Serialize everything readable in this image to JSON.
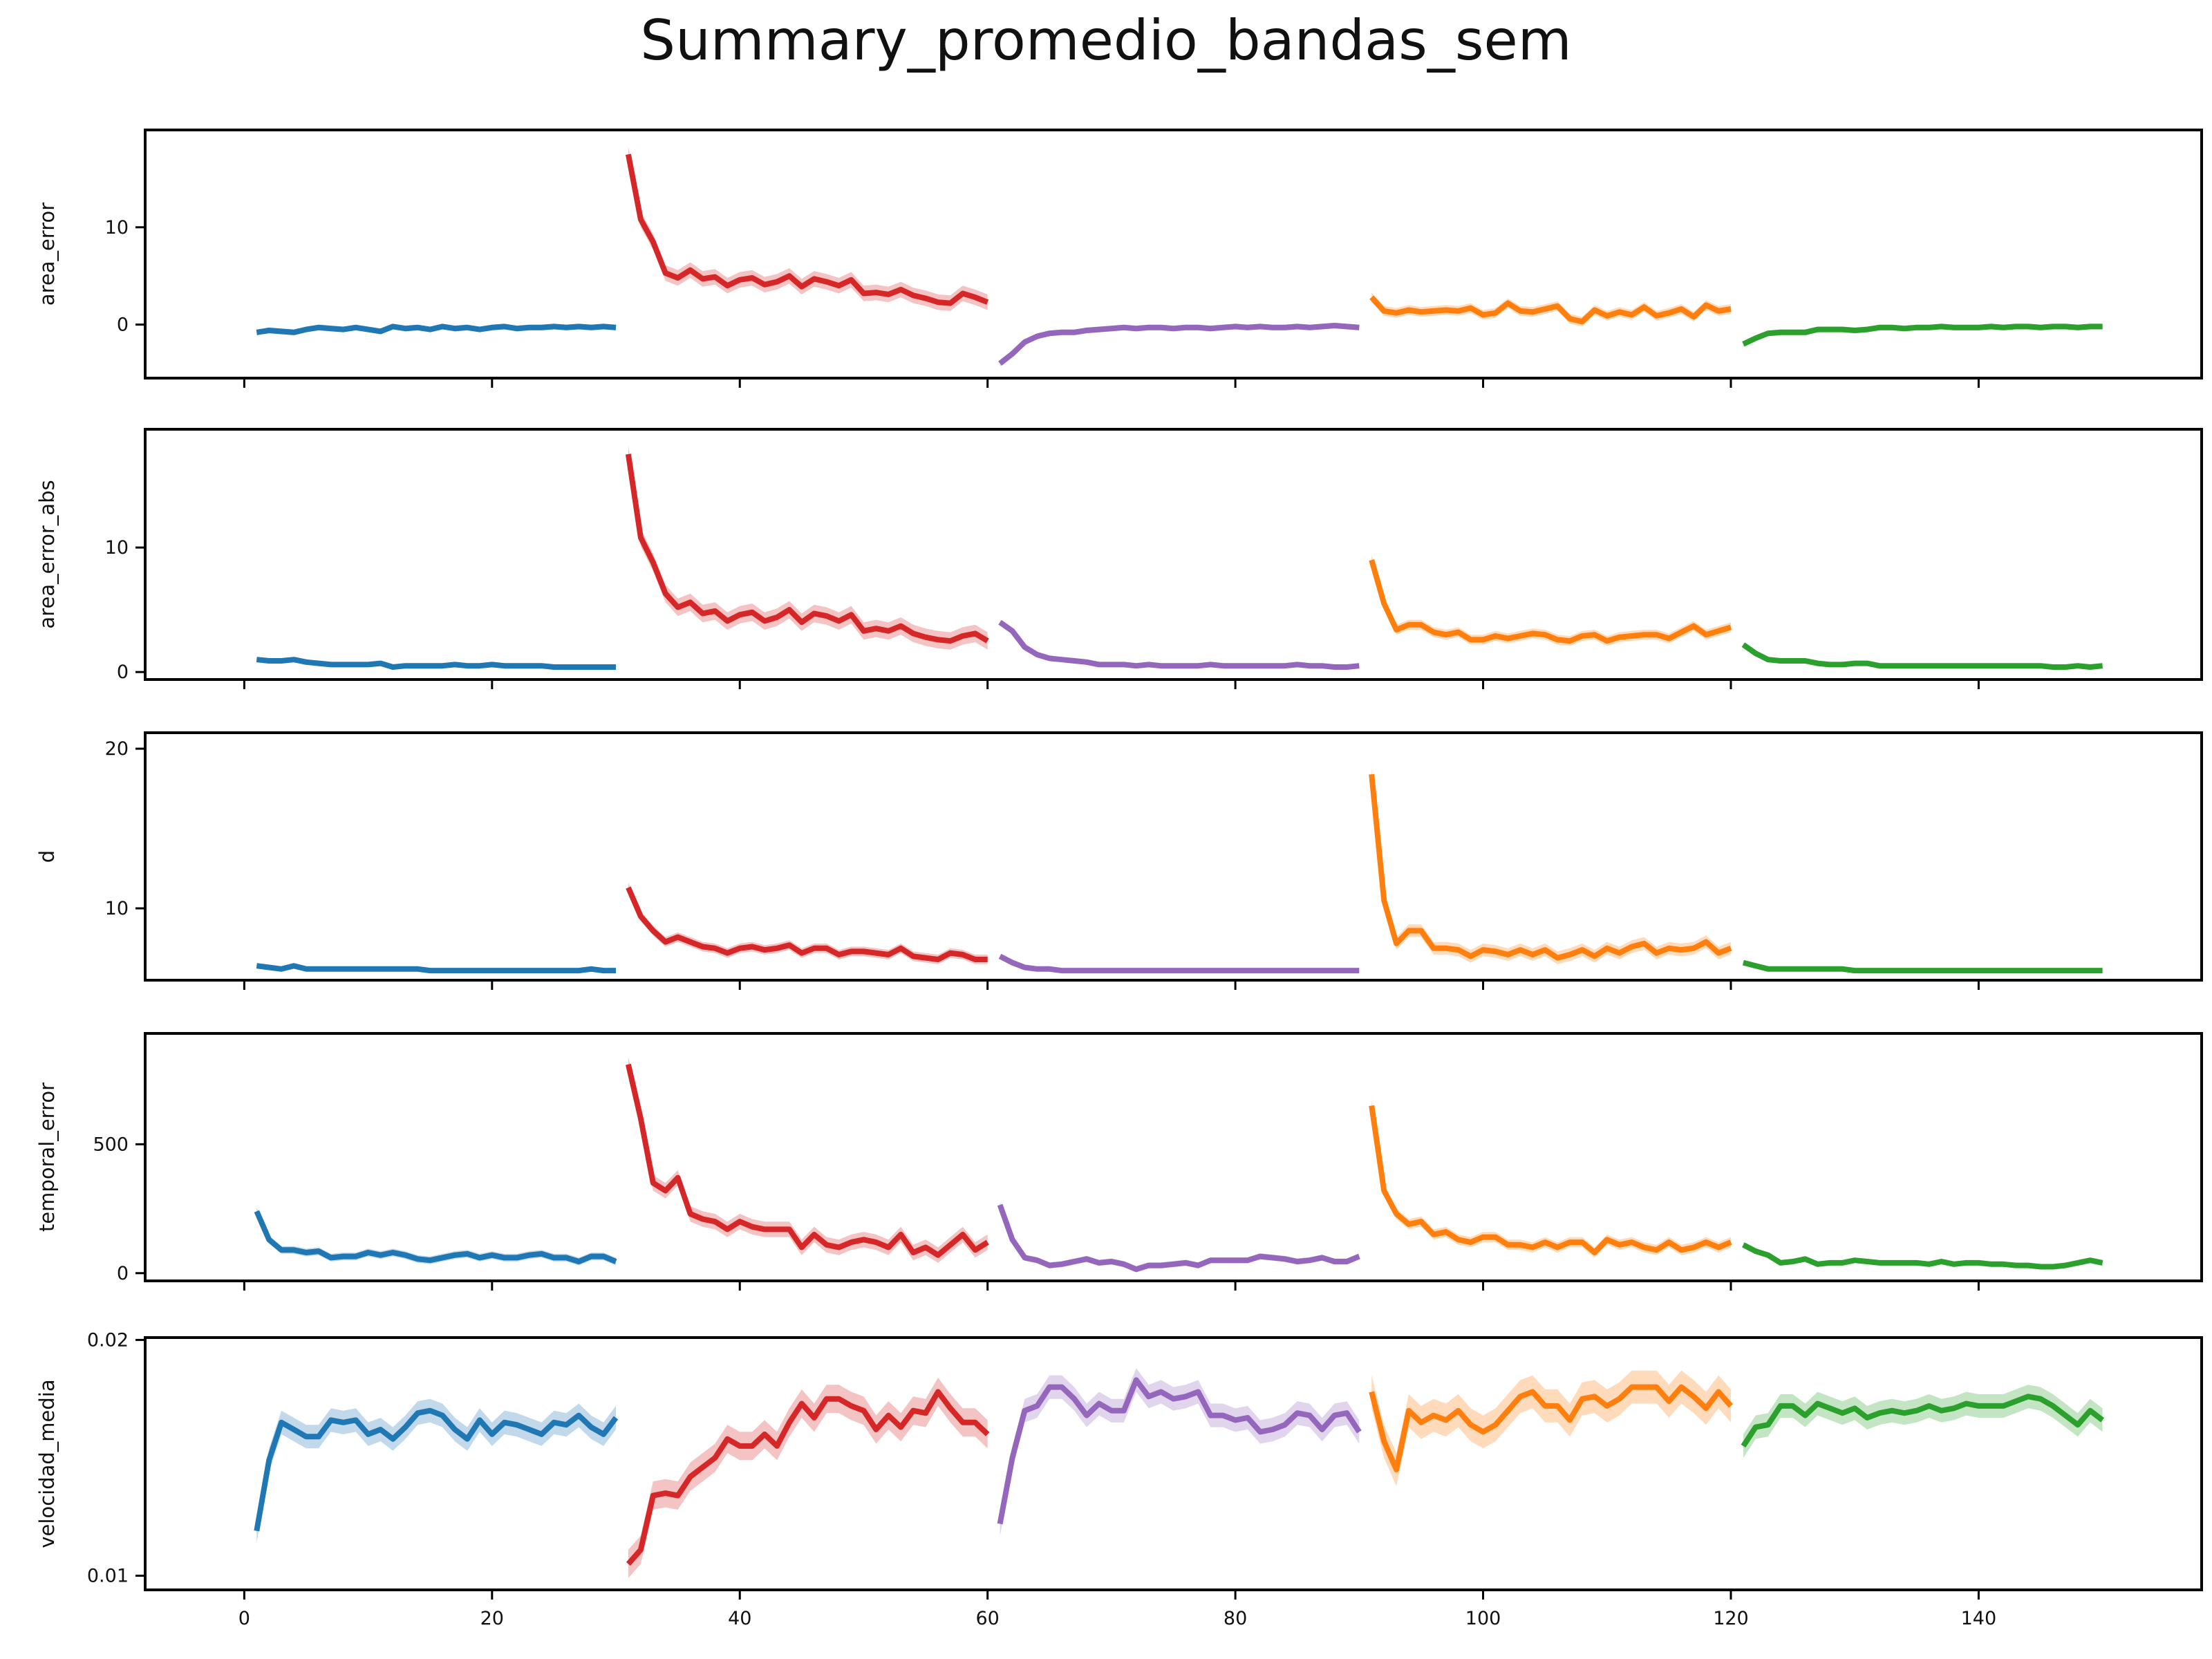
{
  "chart_data": {
    "type": "line",
    "title": "Summary_promedio_bandas_sem",
    "x": {
      "xlim": [
        -8,
        158
      ],
      "ticks": [
        0,
        20,
        40,
        60,
        80,
        100,
        120,
        140
      ],
      "segments": [
        [
          1,
          30
        ],
        [
          31,
          60
        ],
        [
          61,
          90
        ],
        [
          91,
          120
        ],
        [
          121,
          150
        ]
      ]
    },
    "colors": [
      "#1f77b4",
      "#d62728",
      "#9467bd",
      "#ff7f0e",
      "#2ca02c"
    ],
    "panels": [
      {
        "ylabel": "area_error",
        "ylim": [
          -5.5,
          20
        ],
        "yticks": [
          0,
          10
        ],
        "segments": [
          {
            "values": [
              -0.8,
              -0.6,
              -0.7,
              -0.8,
              -0.5,
              -0.3,
              -0.4,
              -0.5,
              -0.3,
              -0.5,
              -0.7,
              -0.2,
              -0.4,
              -0.3,
              -0.5,
              -0.2,
              -0.4,
              -0.3,
              -0.5,
              -0.3,
              -0.2,
              -0.4,
              -0.3,
              -0.3,
              -0.2,
              -0.3,
              -0.2,
              -0.3,
              -0.2,
              -0.3
            ],
            "sem": 0.3
          },
          {
            "values": [
              17.5,
              10.8,
              8.5,
              5.3,
              4.8,
              5.6,
              4.7,
              4.9,
              4.0,
              4.6,
              4.8,
              4.1,
              4.4,
              5.0,
              3.9,
              4.7,
              4.4,
              4.0,
              4.6,
              3.2,
              3.3,
              3.1,
              3.6,
              3.0,
              2.7,
              2.3,
              2.2,
              3.2,
              2.8,
              2.3
            ],
            "sem": 0.8
          },
          {
            "values": [
              -4.0,
              -3.0,
              -1.8,
              -1.2,
              -0.9,
              -0.8,
              -0.8,
              -0.6,
              -0.5,
              -0.4,
              -0.3,
              -0.4,
              -0.3,
              -0.3,
              -0.4,
              -0.3,
              -0.3,
              -0.4,
              -0.3,
              -0.2,
              -0.3,
              -0.2,
              -0.3,
              -0.3,
              -0.2,
              -0.3,
              -0.2,
              -0.1,
              -0.2,
              -0.3
            ],
            "sem": 0.3
          },
          {
            "values": [
              2.8,
              1.4,
              1.2,
              1.5,
              1.3,
              1.4,
              1.5,
              1.4,
              1.7,
              1.0,
              1.2,
              2.2,
              1.4,
              1.3,
              1.6,
              1.9,
              0.6,
              0.3,
              1.5,
              0.9,
              1.3,
              1.0,
              1.8,
              0.9,
              1.2,
              1.6,
              0.8,
              2.0,
              1.4,
              1.6
            ],
            "sem": 0.5
          },
          {
            "values": [
              -2.0,
              -1.4,
              -0.9,
              -0.8,
              -0.8,
              -0.8,
              -0.5,
              -0.5,
              -0.5,
              -0.6,
              -0.5,
              -0.3,
              -0.3,
              -0.4,
              -0.3,
              -0.3,
              -0.2,
              -0.3,
              -0.3,
              -0.3,
              -0.2,
              -0.3,
              -0.2,
              -0.2,
              -0.3,
              -0.2,
              -0.2,
              -0.3,
              -0.2,
              -0.2
            ],
            "sem": 0.3
          }
        ]
      },
      {
        "ylabel": "area_error_abs",
        "ylim": [
          -0.6,
          19.5
        ],
        "yticks": [
          0,
          10
        ],
        "segments": [
          {
            "values": [
              1.0,
              0.9,
              0.9,
              1.0,
              0.8,
              0.7,
              0.6,
              0.6,
              0.6,
              0.6,
              0.7,
              0.4,
              0.5,
              0.5,
              0.5,
              0.5,
              0.6,
              0.5,
              0.5,
              0.6,
              0.5,
              0.5,
              0.5,
              0.5,
              0.4,
              0.4,
              0.4,
              0.4,
              0.4,
              0.4
            ],
            "sem": 0.15
          },
          {
            "values": [
              17.5,
              10.8,
              8.8,
              6.3,
              5.2,
              5.6,
              4.7,
              4.9,
              4.1,
              4.6,
              4.8,
              4.1,
              4.4,
              5.0,
              4.0,
              4.7,
              4.5,
              4.1,
              4.6,
              3.3,
              3.5,
              3.3,
              3.7,
              3.1,
              2.8,
              2.6,
              2.5,
              2.9,
              3.1,
              2.5
            ],
            "sem": 0.7
          },
          {
            "values": [
              4.0,
              3.3,
              2.0,
              1.4,
              1.1,
              1.0,
              0.9,
              0.8,
              0.6,
              0.6,
              0.6,
              0.5,
              0.6,
              0.5,
              0.5,
              0.5,
              0.5,
              0.6,
              0.5,
              0.5,
              0.5,
              0.5,
              0.5,
              0.5,
              0.6,
              0.5,
              0.5,
              0.4,
              0.4,
              0.5
            ],
            "sem": 0.2
          },
          {
            "values": [
              9.0,
              5.5,
              3.4,
              3.8,
              3.8,
              3.2,
              3.0,
              3.2,
              2.6,
              2.6,
              2.9,
              2.7,
              2.9,
              3.1,
              3.0,
              2.6,
              2.5,
              2.9,
              3.0,
              2.5,
              2.8,
              2.9,
              3.0,
              3.0,
              2.7,
              3.2,
              3.7,
              3.0,
              3.3,
              3.6
            ],
            "sem": 0.4
          },
          {
            "values": [
              2.2,
              1.5,
              1.0,
              0.9,
              0.9,
              0.9,
              0.7,
              0.6,
              0.6,
              0.7,
              0.7,
              0.5,
              0.5,
              0.5,
              0.5,
              0.5,
              0.5,
              0.5,
              0.5,
              0.5,
              0.5,
              0.5,
              0.5,
              0.5,
              0.5,
              0.4,
              0.4,
              0.5,
              0.4,
              0.5
            ],
            "sem": 0.15
          }
        ]
      },
      {
        "ylabel": "d",
        "ylim": [
          5.5,
          21
        ],
        "yticks": [
          10,
          20
        ],
        "segments": [
          {
            "values": [
              6.4,
              6.3,
              6.2,
              6.4,
              6.2,
              6.2,
              6.2,
              6.2,
              6.2,
              6.2,
              6.2,
              6.2,
              6.2,
              6.2,
              6.1,
              6.1,
              6.1,
              6.1,
              6.1,
              6.1,
              6.1,
              6.1,
              6.1,
              6.1,
              6.1,
              6.1,
              6.1,
              6.2,
              6.1,
              6.1
            ],
            "sem": 0.1
          },
          {
            "values": [
              11.3,
              9.5,
              8.6,
              7.9,
              8.2,
              7.9,
              7.6,
              7.5,
              7.2,
              7.5,
              7.6,
              7.4,
              7.5,
              7.7,
              7.2,
              7.5,
              7.5,
              7.1,
              7.3,
              7.3,
              7.2,
              7.1,
              7.5,
              7.0,
              6.9,
              6.8,
              7.2,
              7.1,
              6.8,
              6.8
            ],
            "sem": 0.3
          },
          {
            "values": [
              7.0,
              6.6,
              6.3,
              6.2,
              6.2,
              6.1,
              6.1,
              6.1,
              6.1,
              6.1,
              6.1,
              6.1,
              6.1,
              6.1,
              6.1,
              6.1,
              6.1,
              6.1,
              6.1,
              6.1,
              6.1,
              6.1,
              6.1,
              6.1,
              6.1,
              6.1,
              6.1,
              6.1,
              6.1,
              6.1
            ],
            "sem": 0.1
          },
          {
            "values": [
              18.4,
              10.5,
              7.8,
              8.6,
              8.6,
              7.5,
              7.5,
              7.4,
              7.0,
              7.4,
              7.3,
              7.1,
              7.4,
              7.1,
              7.4,
              6.9,
              7.1,
              7.4,
              7.0,
              7.5,
              7.2,
              7.6,
              7.8,
              7.2,
              7.5,
              7.4,
              7.5,
              7.9,
              7.2,
              7.5
            ],
            "sem": 0.4
          },
          {
            "values": [
              6.6,
              6.4,
              6.2,
              6.2,
              6.2,
              6.2,
              6.2,
              6.2,
              6.2,
              6.1,
              6.1,
              6.1,
              6.1,
              6.1,
              6.1,
              6.1,
              6.1,
              6.1,
              6.1,
              6.1,
              6.1,
              6.1,
              6.1,
              6.1,
              6.1,
              6.1,
              6.1,
              6.1,
              6.1,
              6.1
            ],
            "sem": 0.1
          }
        ]
      },
      {
        "ylabel": "temporal_error",
        "ylim": [
          -30,
          930
        ],
        "yticks": [
          0,
          500
        ],
        "segments": [
          {
            "values": [
              240,
              130,
              90,
              90,
              80,
              85,
              60,
              65,
              65,
              80,
              70,
              80,
              70,
              55,
              50,
              60,
              70,
              75,
              60,
              70,
              60,
              60,
              70,
              75,
              60,
              60,
              45,
              65,
              65,
              45
            ],
            "sem": 15
          },
          {
            "values": [
              810,
              600,
              350,
              320,
              370,
              230,
              210,
              200,
              170,
              200,
              180,
              170,
              170,
              170,
              100,
              150,
              110,
              100,
              120,
              130,
              120,
              100,
              150,
              80,
              100,
              70,
              110,
              150,
              90,
              120
            ],
            "sem": 30
          },
          {
            "values": [
              265,
              130,
              60,
              50,
              30,
              35,
              45,
              55,
              40,
              45,
              35,
              15,
              30,
              30,
              35,
              40,
              30,
              50,
              50,
              50,
              50,
              65,
              60,
              55,
              45,
              50,
              60,
              45,
              45,
              65
            ],
            "sem": 12
          },
          {
            "values": [
              650,
              320,
              230,
              190,
              200,
              150,
              160,
              130,
              120,
              140,
              140,
              110,
              110,
              100,
              120,
              100,
              120,
              120,
              80,
              130,
              110,
              120,
              100,
              90,
              120,
              90,
              100,
              120,
              100,
              120
            ],
            "sem": 20
          },
          {
            "values": [
              110,
              85,
              70,
              40,
              45,
              55,
              35,
              40,
              40,
              50,
              45,
              40,
              40,
              40,
              40,
              35,
              45,
              35,
              40,
              40,
              35,
              35,
              30,
              30,
              25,
              25,
              30,
              40,
              50,
              40
            ],
            "sem": 10
          }
        ]
      },
      {
        "ylabel": "velocidad_media",
        "ylim": [
          0.0094,
          0.0201
        ],
        "yticks": [
          0.01,
          0.02
        ],
        "ytick_labels": [
          "0.01",
          "0.02"
        ],
        "segments": [
          {
            "values": [
              0.0119,
              0.0149,
              0.0165,
              0.0162,
              0.0159,
              0.0159,
              0.0166,
              0.0165,
              0.0166,
              0.016,
              0.0162,
              0.0158,
              0.0163,
              0.0169,
              0.017,
              0.0168,
              0.0162,
              0.0158,
              0.0166,
              0.016,
              0.0165,
              0.0164,
              0.0162,
              0.016,
              0.0165,
              0.0164,
              0.0168,
              0.0163,
              0.016,
              0.0167
            ],
            "sem": 0.0005
          },
          {
            "values": [
              0.0105,
              0.0111,
              0.0134,
              0.0135,
              0.0134,
              0.0142,
              0.0146,
              0.015,
              0.0158,
              0.0155,
              0.0155,
              0.016,
              0.0155,
              0.0165,
              0.0173,
              0.0167,
              0.0175,
              0.0175,
              0.0172,
              0.017,
              0.0162,
              0.0168,
              0.0163,
              0.017,
              0.0169,
              0.0178,
              0.0171,
              0.0165,
              0.0165,
              0.016
            ],
            "sem": 0.0006
          },
          {
            "values": [
              0.0122,
              0.015,
              0.017,
              0.0172,
              0.018,
              0.018,
              0.0175,
              0.0168,
              0.0173,
              0.017,
              0.017,
              0.0183,
              0.0176,
              0.0178,
              0.0175,
              0.0176,
              0.0178,
              0.0168,
              0.0168,
              0.0166,
              0.0167,
              0.0161,
              0.0162,
              0.0164,
              0.0169,
              0.0168,
              0.0162,
              0.0168,
              0.0169,
              0.0161
            ],
            "sem": 0.0005
          },
          {
            "values": [
              0.0178,
              0.0157,
              0.0145,
              0.017,
              0.0165,
              0.0168,
              0.0166,
              0.017,
              0.0164,
              0.0161,
              0.0164,
              0.017,
              0.0176,
              0.0178,
              0.0172,
              0.0172,
              0.0166,
              0.0175,
              0.0176,
              0.0172,
              0.0175,
              0.018,
              0.018,
              0.018,
              0.0174,
              0.018,
              0.0176,
              0.0171,
              0.0178,
              0.0172
            ],
            "sem": 0.0007
          },
          {
            "values": [
              0.0155,
              0.0163,
              0.0164,
              0.0172,
              0.0172,
              0.0168,
              0.0173,
              0.0171,
              0.0169,
              0.0171,
              0.0167,
              0.0169,
              0.017,
              0.0169,
              0.017,
              0.0172,
              0.017,
              0.0171,
              0.0173,
              0.0172,
              0.0172,
              0.0172,
              0.0174,
              0.0176,
              0.0175,
              0.0172,
              0.0168,
              0.0164,
              0.017,
              0.0166
            ],
            "sem": 0.0005
          }
        ]
      }
    ]
  }
}
